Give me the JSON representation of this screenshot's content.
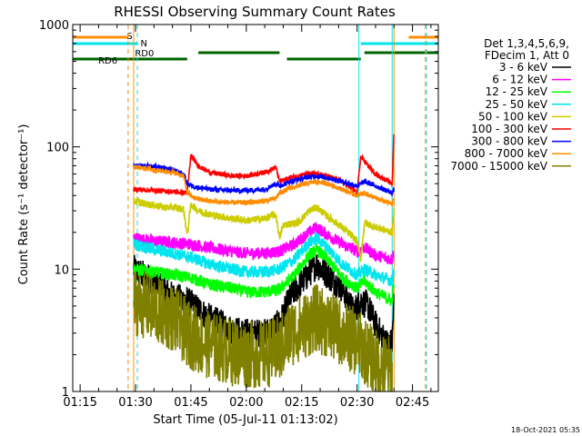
{
  "chart_data": {
    "type": "line",
    "title": "RHESSI Observing Summary Count Rates",
    "xlabel": "Start Time (05-Jul-11 01:13:02)",
    "ylabel": "Count Rate (s⁻¹ detector⁻¹)",
    "y_scale": "log",
    "ylim": [
      1,
      1000
    ],
    "xlim_minutes": [
      73,
      172
    ],
    "x_ticks": [
      {
        "label": "01:15",
        "minute": 75
      },
      {
        "label": "01:30",
        "minute": 90
      },
      {
        "label": "01:45",
        "minute": 105
      },
      {
        "label": "02:00",
        "minute": 120
      },
      {
        "label": "02:15",
        "minute": 135
      },
      {
        "label": "02:30",
        "minute": 150
      },
      {
        "label": "02:45",
        "minute": 165
      }
    ],
    "y_ticks": [
      {
        "label": "1",
        "value": 1
      },
      {
        "label": "10",
        "value": 10
      },
      {
        "label": "100",
        "value": 100
      },
      {
        "label": "1000",
        "value": 1000
      }
    ],
    "timestamp": "18-Oct-2021 05:35",
    "legend_header": [
      "Det 1,3,4,5,6,9,",
      "FDecim 1, Att 0"
    ],
    "legend_position": "right",
    "flags": {
      "s_label": "S",
      "s_color": "#ff8c00",
      "n_label": "N",
      "n_color": "#00e5ee",
      "rd0_label": "RD0",
      "rd0_color": "#006400",
      "rd6_label": "RD6",
      "rd6_color": "#006400",
      "s_bars": [
        [
          73,
          88
        ],
        [
          164,
          172
        ]
      ],
      "n_bars": [
        [
          73,
          90.5
        ],
        [
          151,
          172
        ]
      ],
      "rd0_bars": [
        [
          107,
          129
        ],
        [
          152,
          172
        ]
      ],
      "rd6_bars": [
        [
          73,
          104
        ],
        [
          131,
          151
        ]
      ]
    },
    "vlines": [
      {
        "minute": 88,
        "color": "#ff8c00",
        "dash": true
      },
      {
        "minute": 90.5,
        "color": "#00e5ee",
        "dash": true
      },
      {
        "minute": 89.5,
        "color": "#ff8c00",
        "dash": false
      },
      {
        "minute": 150.5,
        "color": "#00e5ee",
        "dash": false
      },
      {
        "minute": 159.5,
        "color": "#00e5ee",
        "dash": false
      },
      {
        "minute": 160,
        "color": "#ff8c00",
        "dash": false
      },
      {
        "minute": 168.5,
        "color": "#ff8c00",
        "dash": true
      },
      {
        "minute": 168.8,
        "color": "#00e5ee",
        "dash": true
      }
    ],
    "series": [
      {
        "name": "3 - 6 keV",
        "color": "#000000",
        "noise": 0.12,
        "points": [
          [
            89.5,
            10
          ],
          [
            95,
            8
          ],
          [
            100,
            6
          ],
          [
            104,
            5.5
          ],
          [
            110,
            4
          ],
          [
            116,
            3.2
          ],
          [
            120,
            3
          ],
          [
            125,
            3
          ],
          [
            129,
            3.6
          ],
          [
            132,
            6
          ],
          [
            136,
            8.5
          ],
          [
            139,
            11
          ],
          [
            142,
            9
          ],
          [
            146,
            7
          ],
          [
            149,
            4.5
          ],
          [
            151,
            5.5
          ],
          [
            153,
            5
          ],
          [
            155,
            3.5
          ],
          [
            158,
            2.5
          ],
          [
            159.5,
            2.5
          ],
          [
            160,
            6
          ]
        ]
      },
      {
        "name": "6 - 12 keV",
        "color": "#ff00ff",
        "noise": 0.05,
        "points": [
          [
            89.5,
            18
          ],
          [
            95,
            17
          ],
          [
            100,
            16.5
          ],
          [
            105,
            16
          ],
          [
            110,
            15
          ],
          [
            116,
            14
          ],
          [
            120,
            13.5
          ],
          [
            125,
            13.5
          ],
          [
            129,
            14
          ],
          [
            133,
            16
          ],
          [
            137,
            20
          ],
          [
            139,
            22
          ],
          [
            142,
            19
          ],
          [
            146,
            16
          ],
          [
            150,
            14
          ],
          [
            152,
            15
          ],
          [
            155,
            13
          ],
          [
            159.5,
            12
          ],
          [
            160,
            14
          ]
        ]
      },
      {
        "name": "12 - 25 keV",
        "color": "#00ff00",
        "noise": 0.05,
        "points": [
          [
            89.5,
            10
          ],
          [
            95,
            9.5
          ],
          [
            100,
            9
          ],
          [
            105,
            8.5
          ],
          [
            110,
            7.5
          ],
          [
            116,
            7
          ],
          [
            120,
            6.5
          ],
          [
            125,
            6.5
          ],
          [
            129,
            6.8
          ],
          [
            133,
            9
          ],
          [
            137,
            13
          ],
          [
            139,
            14.5
          ],
          [
            142,
            12
          ],
          [
            146,
            8.5
          ],
          [
            150,
            7
          ],
          [
            152,
            8
          ],
          [
            155,
            6.5
          ],
          [
            159.5,
            5.5
          ],
          [
            160,
            8
          ]
        ]
      },
      {
        "name": "25 - 50 keV",
        "color": "#00e5ee",
        "noise": 0.05,
        "points": [
          [
            89.5,
            16
          ],
          [
            95,
            14.5
          ],
          [
            100,
            13.5
          ],
          [
            105,
            12.5
          ],
          [
            110,
            11
          ],
          [
            116,
            10
          ],
          [
            120,
            9.5
          ],
          [
            125,
            9.5
          ],
          [
            129,
            10
          ],
          [
            133,
            12
          ],
          [
            137,
            16.5
          ],
          [
            139,
            18
          ],
          [
            142,
            15
          ],
          [
            146,
            11
          ],
          [
            150,
            9
          ],
          [
            152,
            10
          ],
          [
            155,
            9
          ],
          [
            159.5,
            8
          ],
          [
            160,
            10
          ]
        ]
      },
      {
        "name": "50 - 100 keV",
        "color": "#cccc00",
        "noise": 0.03,
        "points": [
          [
            89.5,
            36
          ],
          [
            93,
            34
          ],
          [
            96,
            33
          ],
          [
            98,
            32
          ],
          [
            100,
            32
          ],
          [
            103,
            31
          ],
          [
            104,
            19
          ],
          [
            105,
            34
          ],
          [
            107,
            30
          ],
          [
            110,
            28
          ],
          [
            116,
            26
          ],
          [
            120,
            25
          ],
          [
            125,
            26
          ],
          [
            128,
            28
          ],
          [
            129,
            18
          ],
          [
            130,
            23
          ],
          [
            134,
            24
          ],
          [
            137,
            30
          ],
          [
            139,
            32
          ],
          [
            142,
            27
          ],
          [
            146,
            22
          ],
          [
            150,
            17
          ],
          [
            151,
            12
          ],
          [
            152,
            24
          ],
          [
            155,
            22
          ],
          [
            159.5,
            20
          ],
          [
            160,
            30
          ]
        ]
      },
      {
        "name": "100 - 300 keV",
        "color": "#ff0000",
        "noise": 0.02,
        "points": [
          [
            89.5,
            45
          ],
          [
            95,
            44
          ],
          [
            100,
            43
          ],
          [
            104,
            42
          ],
          [
            105,
            85
          ],
          [
            107,
            70
          ],
          [
            110,
            62
          ],
          [
            116,
            58
          ],
          [
            120,
            58
          ],
          [
            125,
            62
          ],
          [
            128,
            68
          ],
          [
            129,
            52
          ],
          [
            132,
            56
          ],
          [
            136,
            60
          ],
          [
            139,
            60
          ],
          [
            142,
            58
          ],
          [
            146,
            52
          ],
          [
            150,
            42
          ],
          [
            151,
            85
          ],
          [
            153,
            70
          ],
          [
            155,
            60
          ],
          [
            159.5,
            50
          ],
          [
            160,
            130
          ]
        ]
      },
      {
        "name": "300 - 800 keV",
        "color": "#0000ff",
        "noise": 0.02,
        "points": [
          [
            89.5,
            70
          ],
          [
            93,
            70
          ],
          [
            96,
            68
          ],
          [
            100,
            65
          ],
          [
            103,
            60
          ],
          [
            104,
            50
          ],
          [
            106,
            47
          ],
          [
            110,
            45
          ],
          [
            116,
            44
          ],
          [
            120,
            44
          ],
          [
            125,
            45
          ],
          [
            128,
            50
          ],
          [
            129,
            48
          ],
          [
            132,
            52
          ],
          [
            136,
            56
          ],
          [
            139,
            58
          ],
          [
            142,
            56
          ],
          [
            146,
            52
          ],
          [
            150,
            48
          ],
          [
            152,
            52
          ],
          [
            155,
            48
          ],
          [
            159.5,
            42
          ],
          [
            160,
            45
          ]
        ]
      },
      {
        "name": "800 - 7000 keV",
        "color": "#ff8c00",
        "noise": 0.02,
        "points": [
          [
            89.5,
            68
          ],
          [
            93,
            67
          ],
          [
            96,
            64
          ],
          [
            100,
            62
          ],
          [
            103,
            58
          ],
          [
            104,
            42
          ],
          [
            106,
            38
          ],
          [
            110,
            36
          ],
          [
            116,
            35
          ],
          [
            120,
            35
          ],
          [
            125,
            36
          ],
          [
            128,
            38
          ],
          [
            129,
            42
          ],
          [
            132,
            46
          ],
          [
            136,
            50
          ],
          [
            139,
            52
          ],
          [
            142,
            50
          ],
          [
            146,
            45
          ],
          [
            150,
            40
          ],
          [
            152,
            42
          ],
          [
            155,
            38
          ],
          [
            159.5,
            34
          ],
          [
            160,
            38
          ]
        ]
      },
      {
        "name": "7000 - 15000 keV",
        "color": "#808000",
        "noise": 0.28,
        "points": [
          [
            89.5,
            5.5
          ],
          [
            93,
            5
          ],
          [
            96,
            4.5
          ],
          [
            100,
            4
          ],
          [
            104,
            3
          ],
          [
            108,
            2.5
          ],
          [
            112,
            2.3
          ],
          [
            116,
            2.1
          ],
          [
            120,
            2
          ],
          [
            125,
            2
          ],
          [
            129,
            2.2
          ],
          [
            132,
            3
          ],
          [
            136,
            3.5
          ],
          [
            139,
            4
          ],
          [
            142,
            3.5
          ],
          [
            146,
            3
          ],
          [
            150,
            2.5
          ],
          [
            153,
            2
          ],
          [
            156,
            1.6
          ],
          [
            159.5,
            1.5
          ]
        ]
      }
    ]
  }
}
